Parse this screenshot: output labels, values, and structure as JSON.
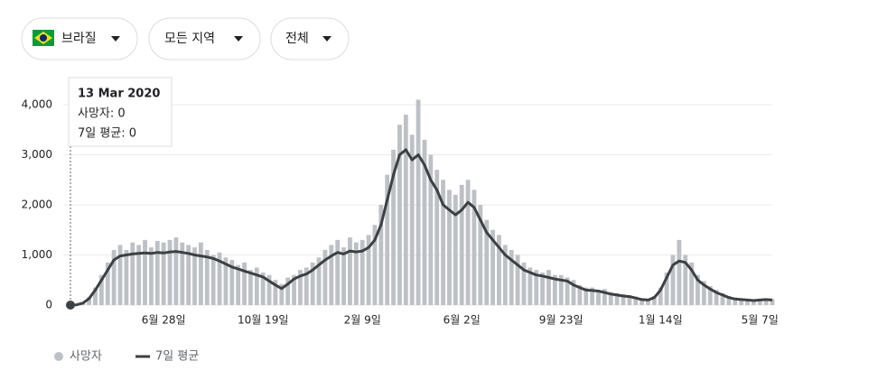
{
  "filters": [
    "브라질",
    "모든 지역",
    "전체"
  ],
  "tooltip": {
    "date": "13 Mar 2020",
    "lines": [
      "사망자: 0",
      "7일 평균: 0"
    ]
  },
  "chart_data": {
    "type": "bar-line",
    "categories": [
      null,
      null,
      null,
      null,
      null,
      null,
      null,
      null,
      null,
      null,
      null,
      null,
      null,
      null,
      null,
      "6월 28일",
      null,
      null,
      null,
      null,
      null,
      null,
      null,
      null,
      null,
      null,
      null,
      null,
      null,
      null,
      null,
      "10월 19일",
      null,
      null,
      null,
      null,
      null,
      null,
      null,
      null,
      null,
      null,
      null,
      null,
      null,
      null,
      null,
      "2월 9일",
      null,
      null,
      null,
      null,
      null,
      null,
      null,
      null,
      null,
      null,
      null,
      null,
      null,
      null,
      null,
      "6월 2일",
      null,
      null,
      null,
      null,
      null,
      null,
      null,
      null,
      null,
      null,
      null,
      null,
      null,
      null,
      null,
      "9월 23일",
      null,
      null,
      null,
      null,
      null,
      null,
      null,
      null,
      null,
      null,
      null,
      null,
      null,
      null,
      null,
      "1월 14일",
      null,
      null,
      null,
      null,
      null,
      null,
      null,
      null,
      null,
      null,
      null,
      null,
      null,
      null,
      null,
      "5월 7일",
      null,
      null
    ],
    "series": [
      {
        "name": "사망자",
        "color": "#bdc1c6",
        "values": [
          0,
          8,
          50,
          160,
          350,
          600,
          850,
          1100,
          1200,
          1100,
          1250,
          1200,
          1300,
          1150,
          1280,
          1250,
          1300,
          1350,
          1250,
          1200,
          1150,
          1250,
          1100,
          1000,
          1050,
          950,
          900,
          800,
          850,
          700,
          750,
          650,
          600,
          500,
          420,
          550,
          600,
          700,
          750,
          850,
          950,
          1100,
          1200,
          1300,
          1150,
          1350,
          1250,
          1300,
          1400,
          1600,
          2000,
          2600,
          3100,
          3600,
          3800,
          3400,
          4100,
          3300,
          3000,
          2700,
          2500,
          2300,
          2200,
          2400,
          2500,
          2300,
          2000,
          1700,
          1500,
          1400,
          1200,
          1100,
          1000,
          850,
          750,
          700,
          650,
          700,
          600,
          600,
          550,
          500,
          400,
          350,
          350,
          300,
          320,
          260,
          240,
          220,
          200,
          170,
          130,
          120,
          180,
          350,
          650,
          1000,
          1300,
          1000,
          850,
          600,
          480,
          380,
          300,
          240,
          180,
          150,
          130,
          120,
          100,
          120,
          130,
          120
        ]
      },
      {
        "name": "7일 평균",
        "color": "#3c4043",
        "values": [
          0,
          5,
          40,
          130,
          300,
          500,
          700,
          900,
          980,
          1000,
          1020,
          1030,
          1040,
          1030,
          1050,
          1040,
          1060,
          1070,
          1050,
          1030,
          1000,
          980,
          960,
          930,
          880,
          820,
          760,
          720,
          680,
          640,
          600,
          560,
          480,
          400,
          330,
          420,
          520,
          580,
          620,
          700,
          800,
          900,
          980,
          1050,
          1020,
          1080,
          1060,
          1080,
          1150,
          1300,
          1600,
          2100,
          2600,
          3000,
          3100,
          2900,
          3000,
          2800,
          2500,
          2300,
          2000,
          1900,
          1800,
          1900,
          2050,
          1950,
          1700,
          1450,
          1300,
          1150,
          1000,
          900,
          800,
          700,
          650,
          600,
          580,
          550,
          520,
          500,
          480,
          400,
          350,
          300,
          290,
          280,
          250,
          220,
          200,
          180,
          170,
          140,
          110,
          100,
          150,
          300,
          550,
          800,
          880,
          850,
          700,
          500,
          400,
          320,
          250,
          200,
          150,
          120,
          110,
          100,
          90,
          100,
          110,
          100
        ]
      }
    ],
    "ylim": [
      0,
      4000
    ],
    "yticks": [
      0,
      {
        "value": 1000,
        "label": "1,000"
      },
      {
        "value": 2000,
        "label": "2,000"
      },
      {
        "value": 3000,
        "label": "3,000"
      },
      {
        "value": 4000,
        "label": "4,000"
      }
    ],
    "grid": true
  }
}
